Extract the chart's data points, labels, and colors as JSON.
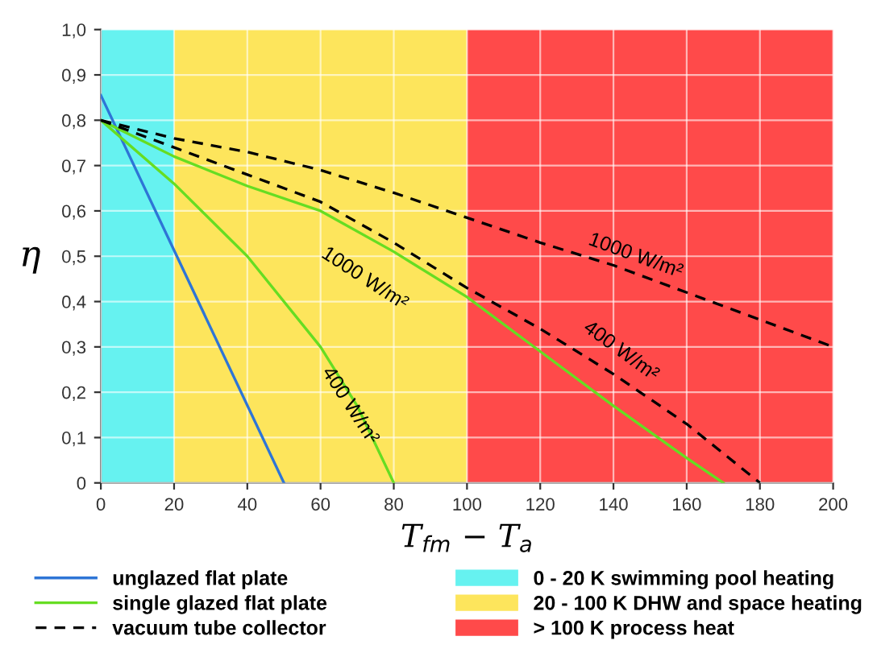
{
  "chart_data": {
    "type": "line",
    "xlabel": "T$_{fm}$ − T$_{a}$",
    "ylabel": "η",
    "xlim": [
      0,
      200
    ],
    "ylim": [
      0,
      1.0
    ],
    "xticks": [
      0,
      20,
      40,
      60,
      80,
      100,
      120,
      140,
      160,
      180,
      200
    ],
    "yticks": [
      0,
      {
        "value": 0.1,
        "label": "0,1"
      },
      {
        "value": 0.2,
        "label": "0,2"
      },
      {
        "value": 0.3,
        "label": "0,3"
      },
      {
        "value": 0.4,
        "label": "0,4"
      },
      {
        "value": 0.5,
        "label": "0,5"
      },
      {
        "value": 0.6,
        "label": "0,6"
      },
      {
        "value": 0.7,
        "label": "0,7"
      },
      {
        "value": 0.8,
        "label": "0,8"
      },
      {
        "value": 0.9,
        "label": "0,9"
      },
      {
        "value": 1.0,
        "label": "1,0"
      }
    ],
    "grid": true,
    "legend": "bottom",
    "marker": "none",
    "series": [
      {
        "name": "unglazed flat plate",
        "color": "#2e75d6",
        "line_style": "solid",
        "x": [
          0,
          50
        ],
        "values": [
          0.855,
          0
        ]
      },
      {
        "name": "single glazed flat plate",
        "color": "#66dd22",
        "line_style": "solid",
        "x": [
          0,
          20,
          40,
          60,
          80,
          100,
          120,
          140,
          160,
          170
        ],
        "values": [
          0.8,
          0.72,
          0.655,
          0.6,
          0.51,
          0.41,
          0.29,
          0.17,
          0.055,
          0
        ]
      },
      {
        "color": "#66dd22",
        "line_style": "solid",
        "x": [
          0,
          20,
          40,
          60,
          70,
          80
        ],
        "values": [
          0.8,
          0.66,
          0.5,
          0.3,
          0.17,
          0
        ]
      },
      {
        "name": "vacuum tube collector",
        "color": "#000000",
        "line_style": "dashed",
        "x": [
          0,
          20,
          40,
          60,
          80,
          100,
          120,
          140,
          160,
          180,
          200
        ],
        "values": [
          0.8,
          0.76,
          0.73,
          0.69,
          0.64,
          0.585,
          0.53,
          0.48,
          0.42,
          0.36,
          0.3
        ]
      },
      {
        "color": "#000000",
        "line_style": "dashed",
        "x": [
          0,
          20,
          40,
          60,
          80,
          100,
          120,
          140,
          160,
          180
        ],
        "values": [
          0.8,
          0.74,
          0.68,
          0.62,
          0.53,
          0.43,
          0.34,
          0.24,
          0.13,
          0
        ]
      }
    ],
    "bands": [
      {
        "axis": "x",
        "from": 0,
        "to": 20,
        "label": "0 - 20 K swimming pool heating",
        "color": "#66f2f0"
      },
      {
        "axis": "x",
        "from": 20,
        "to": 100,
        "label": "20 - 100 K DHW and space heating",
        "color": "#fde55c"
      },
      {
        "axis": "x",
        "from": 100,
        "to": 200,
        "label": "> 100 K process heat",
        "color": "#ff4a4a"
      }
    ],
    "annotations": [
      "1000 W/m²",
      "1000 W/m²",
      "400 W/m²",
      "400 W/m²"
    ]
  }
}
